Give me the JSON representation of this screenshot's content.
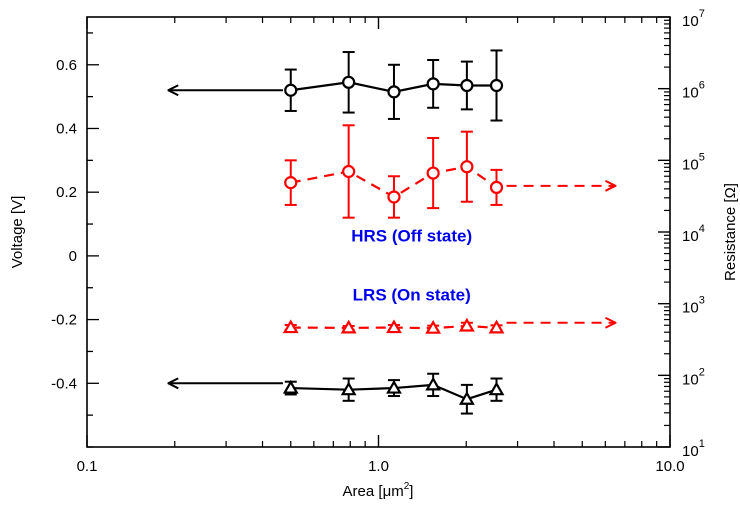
{
  "chart_data": {
    "type": "line",
    "title": "",
    "xlabel": {
      "main": "Area [μm",
      "sup": "2",
      "end": "]"
    },
    "ylabel_left": "Voltage [V]",
    "ylabel_right": "Resistance [Ω]",
    "x_scale": "log",
    "xlim": [
      0.1,
      10.0
    ],
    "x_ticks": [
      {
        "value": 0.1,
        "label": "0.1"
      },
      {
        "value": 1.0,
        "label": "1.0"
      },
      {
        "value": 10.0,
        "label": "10.0"
      }
    ],
    "ylim_left": [
      -0.6,
      0.75
    ],
    "y_left_ticks": [
      {
        "value": 0.6,
        "label": "0.6"
      },
      {
        "value": 0.4,
        "label": "0.4"
      },
      {
        "value": 0.2,
        "label": "0.2"
      },
      {
        "value": 0,
        "label": "0"
      },
      {
        "value": -0.2,
        "label": "-0.2"
      },
      {
        "value": -0.4,
        "label": "-0.4"
      }
    ],
    "y_right_scale": "log",
    "ylim_right": [
      10,
      10000000
    ],
    "y_right_ticks": [
      {
        "value": 10,
        "base": "10",
        "exp": "1"
      },
      {
        "value": 100,
        "base": "10",
        "exp": "2"
      },
      {
        "value": 1000,
        "base": "10",
        "exp": "3"
      },
      {
        "value": 10000,
        "base": "10",
        "exp": "4"
      },
      {
        "value": 100000,
        "base": "10",
        "exp": "5"
      },
      {
        "value": 1000000,
        "base": "10",
        "exp": "6"
      },
      {
        "value": 10000000,
        "base": "10",
        "exp": "7"
      }
    ],
    "grid": false,
    "series": [
      {
        "axis": "left",
        "color": "#000000",
        "marker": "circle",
        "dashed": false,
        "arrow": "left",
        "x": [
          0.5,
          0.79,
          1.13,
          1.54,
          2.01,
          2.54
        ],
        "y": [
          0.52,
          0.545,
          0.515,
          0.54,
          0.535,
          0.535
        ],
        "err": [
          0.065,
          0.095,
          0.085,
          0.075,
          0.075,
          0.11
        ]
      },
      {
        "axis": "left",
        "color": "#ff0000",
        "marker": "circle",
        "dashed": true,
        "arrow": "right",
        "x": [
          0.5,
          0.79,
          1.13,
          1.54,
          2.01,
          2.54
        ],
        "y": [
          0.23,
          0.265,
          0.185,
          0.26,
          0.28,
          0.215
        ],
        "err": [
          0.07,
          0.145,
          0.065,
          0.11,
          0.11,
          0.055
        ]
      },
      {
        "axis": "left",
        "color": "#ff0000",
        "marker": "triangle",
        "dashed": true,
        "arrow": "right",
        "x": [
          0.5,
          0.79,
          1.13,
          1.54,
          2.01,
          2.54
        ],
        "y": [
          -0.225,
          -0.226,
          -0.225,
          -0.227,
          -0.22,
          -0.226
        ],
        "err": [
          0.008,
          0.006,
          0.008,
          0.008,
          0.01,
          0.008
        ]
      },
      {
        "axis": "left",
        "color": "#000000",
        "marker": "triangle",
        "dashed": false,
        "arrow": "left",
        "x": [
          0.5,
          0.79,
          1.13,
          1.54,
          2.01,
          2.54
        ],
        "y": [
          -0.415,
          -0.42,
          -0.415,
          -0.405,
          -0.45,
          -0.42
        ],
        "err": [
          0.02,
          0.035,
          0.025,
          0.035,
          0.045,
          0.035
        ]
      }
    ],
    "annotations": [
      {
        "text": "HRS (Off state)",
        "color": "#0000ee",
        "x": 1.3,
        "y": 0.045
      },
      {
        "text": "LRS (On state)",
        "color": "#0000ee",
        "x": 1.3,
        "y": -0.14
      }
    ],
    "arrows": [
      {
        "color": "#000000",
        "dashed": false,
        "x_from": 0.47,
        "x_to": 0.19,
        "y": 0.52
      },
      {
        "color": "#ff0000",
        "dashed": true,
        "x_from": 2.75,
        "x_to": 6.5,
        "y": 0.22
      },
      {
        "color": "#ff0000",
        "dashed": true,
        "x_from": 2.75,
        "x_to": 6.5,
        "y": -0.21
      },
      {
        "color": "#000000",
        "dashed": false,
        "x_from": 0.47,
        "x_to": 0.19,
        "y": -0.4
      }
    ]
  }
}
